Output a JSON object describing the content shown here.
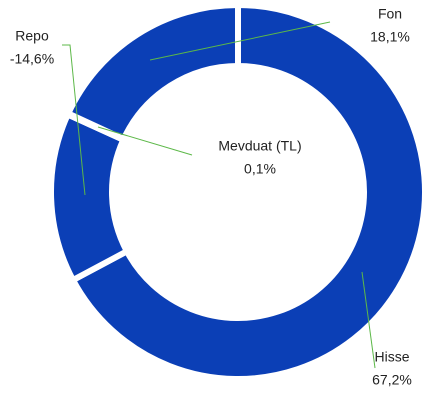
{
  "chart_data": {
    "type": "donut",
    "categories": [
      "Hisse",
      "Repo",
      "Mevduat (TL)",
      "Fon"
    ],
    "values": [
      67.2,
      -14.6,
      0.1,
      18.1
    ],
    "value_labels": [
      "67,2%",
      "-14,6%",
      "0,1%",
      "18,1%"
    ],
    "color": "#0b3fb6",
    "leader_color": "#5cb848"
  }
}
